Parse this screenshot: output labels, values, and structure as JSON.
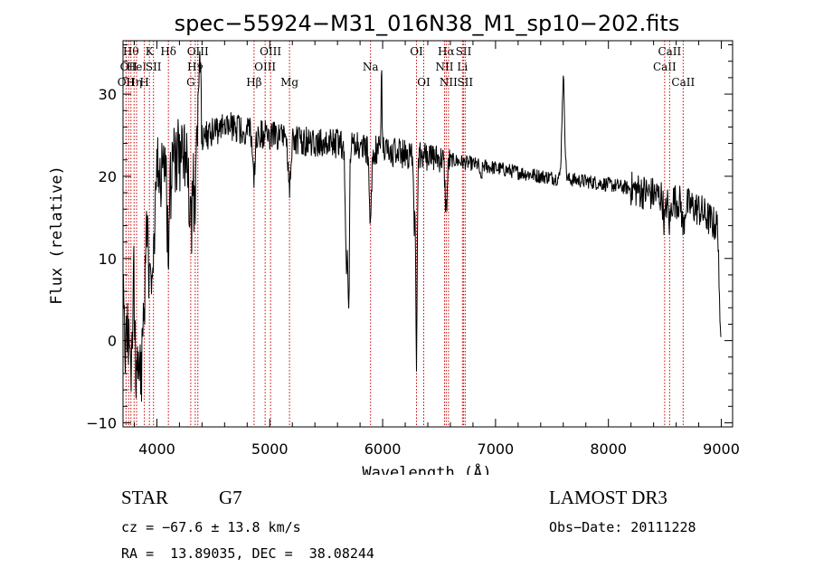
{
  "chart_data": {
    "type": "line",
    "title": "spec−55924−M31_016N38_M1_sp10−202.fits",
    "xlabel": "Wavelength (Å)",
    "ylabel": "Flux (relative)",
    "xlim": [
      3700,
      9100
    ],
    "ylim": [
      -10.5,
      36.5
    ],
    "xticks": [
      4000,
      5000,
      6000,
      7000,
      8000,
      9000
    ],
    "xtick_labels": [
      "4000",
      "5000",
      "6000",
      "7000",
      "8000",
      "9000"
    ],
    "yticks": [
      -10,
      0,
      10,
      20,
      30
    ],
    "ytick_labels": [
      "−10",
      "0",
      "10",
      "20",
      "30"
    ],
    "grid": false,
    "line_color": "#000000",
    "marker_color": "#cc0000",
    "continuum": [
      [
        3700,
        8
      ],
      [
        3750,
        14
      ],
      [
        3800,
        16
      ],
      [
        3850,
        17
      ],
      [
        3900,
        18
      ],
      [
        3950,
        19
      ],
      [
        4000,
        20
      ],
      [
        4100,
        21
      ],
      [
        4200,
        22.5
      ],
      [
        4300,
        23.5
      ],
      [
        4400,
        24.5
      ],
      [
        4500,
        25.5
      ],
      [
        4600,
        26
      ],
      [
        4700,
        26
      ],
      [
        4800,
        25.5
      ],
      [
        4900,
        25.2
      ],
      [
        5000,
        25
      ],
      [
        5100,
        24.7
      ],
      [
        5200,
        24.5
      ],
      [
        5300,
        24.3
      ],
      [
        5400,
        24
      ],
      [
        5600,
        24
      ],
      [
        5800,
        23.5
      ],
      [
        6000,
        23
      ],
      [
        6200,
        22.7
      ],
      [
        6400,
        22.4
      ],
      [
        6600,
        22
      ],
      [
        6800,
        21.5
      ],
      [
        7000,
        21
      ],
      [
        7200,
        20.5
      ],
      [
        7400,
        20
      ],
      [
        7600,
        19.7
      ],
      [
        7800,
        19.4
      ],
      [
        8000,
        19
      ],
      [
        8200,
        18.5
      ],
      [
        8400,
        17.8
      ],
      [
        8600,
        17
      ],
      [
        8800,
        16
      ],
      [
        8950,
        14
      ]
    ],
    "features": [
      {
        "center": 3730,
        "width": 20,
        "depth": 12
      },
      {
        "center": 3770,
        "width": 15,
        "depth": 16
      },
      {
        "center": 3820,
        "width": 15,
        "depth": 20
      },
      {
        "center": 3860,
        "width": 15,
        "depth": 22
      },
      {
        "center": 3890,
        "width": 10,
        "depth": 12
      },
      {
        "center": 3934,
        "width": 12,
        "depth": 14
      },
      {
        "center": 3969,
        "width": 12,
        "depth": 12
      },
      {
        "center": 4102,
        "width": 12,
        "depth": 10
      },
      {
        "center": 4300,
        "width": 18,
        "depth": 10
      },
      {
        "center": 4340,
        "width": 10,
        "depth": 6
      },
      {
        "center": 4380,
        "width": 8,
        "depth": -10
      },
      {
        "center": 4861,
        "width": 10,
        "depth": 5
      },
      {
        "center": 5175,
        "width": 12,
        "depth": 6
      },
      {
        "center": 5680,
        "width": 10,
        "depth": 14
      },
      {
        "center": 5700,
        "width": 6,
        "depth": 19
      },
      {
        "center": 5892,
        "width": 10,
        "depth": 8
      },
      {
        "center": 5990,
        "width": 5,
        "depth": -9
      },
      {
        "center": 6280,
        "width": 6,
        "depth": 8
      },
      {
        "center": 6300,
        "width": 6,
        "depth": 25
      },
      {
        "center": 6562,
        "width": 10,
        "depth": 6
      },
      {
        "center": 6870,
        "width": 8,
        "depth": 2
      },
      {
        "center": 7600,
        "width": 12,
        "depth": -12
      },
      {
        "center": 8498,
        "width": 10,
        "depth": 3
      },
      {
        "center": 8542,
        "width": 10,
        "depth": 3
      },
      {
        "center": 8662,
        "width": 10,
        "depth": 3
      },
      {
        "center": 8990,
        "width": 8,
        "depth": 14
      }
    ],
    "noise": [
      {
        "from": 3700,
        "to": 4400,
        "amplitude": 5
      },
      {
        "from": 4400,
        "to": 6600,
        "amplitude": 1.8
      },
      {
        "from": 6600,
        "to": 8200,
        "amplitude": 0.9
      },
      {
        "from": 8200,
        "to": 9000,
        "amplitude": 2.2
      }
    ],
    "line_markers": [
      {
        "wl": 3727,
        "label": "OII",
        "row": 2
      },
      {
        "wl": 3750,
        "label": "OII",
        "row": 1
      },
      {
        "wl": 3770,
        "label": "Hθ",
        "row": 0
      },
      {
        "wl": 3798,
        "label": "Hη",
        "row": 2
      },
      {
        "wl": 3820,
        "label": "HeI",
        "row": 1
      },
      {
        "wl": 3889,
        "label": "H",
        "row": 2
      },
      {
        "wl": 3934,
        "label": "K",
        "row": 0
      },
      {
        "wl": 3970,
        "label": "SII",
        "row": 1
      },
      {
        "wl": 4102,
        "label": "Hδ",
        "row": 0
      },
      {
        "wl": 4300,
        "label": "G",
        "row": 2
      },
      {
        "wl": 4340,
        "label": "Hγ",
        "row": 1
      },
      {
        "wl": 4363,
        "label": "OIII",
        "row": 0
      },
      {
        "wl": 4861,
        "label": "Hβ",
        "row": 2
      },
      {
        "wl": 4959,
        "label": "OIII",
        "row": 1
      },
      {
        "wl": 5007,
        "label": "OIII",
        "row": 0
      },
      {
        "wl": 5175,
        "label": "Mg",
        "row": 2
      },
      {
        "wl": 5893,
        "label": "Na",
        "row": 1
      },
      {
        "wl": 6300,
        "label": "OI",
        "row": 0
      },
      {
        "wl": 6364,
        "label": "OI",
        "row": 2
      },
      {
        "wl": 6548,
        "label": "NII",
        "row": 1
      },
      {
        "wl": 6563,
        "label": "Hα",
        "row": 0
      },
      {
        "wl": 6583,
        "label": "NII",
        "row": 2
      },
      {
        "wl": 6707,
        "label": "Li",
        "row": 1
      },
      {
        "wl": 6717,
        "label": "SII",
        "row": 0
      },
      {
        "wl": 6731,
        "label": "SII",
        "row": 2
      },
      {
        "wl": 8498,
        "label": "CaII",
        "row": 1
      },
      {
        "wl": 8542,
        "label": "CaII",
        "row": 0
      },
      {
        "wl": 8662,
        "label": "CaII",
        "row": 2
      }
    ]
  },
  "info": {
    "class": "STAR",
    "subclass": "G7",
    "survey": "LAMOST DR3",
    "cz": "cz = −67.6 ± 13.8 km/s",
    "obs_date": "Obs−Date: 20111228",
    "coords": "RA =  13.89035, DEC =  38.08244"
  }
}
